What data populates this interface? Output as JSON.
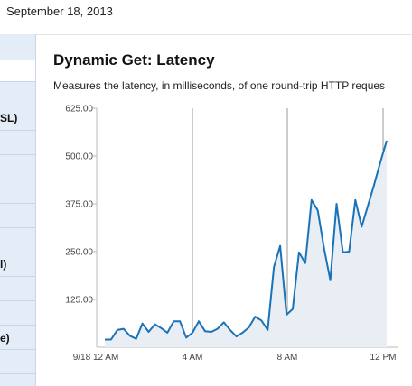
{
  "header": {
    "date": "September 18, 2013"
  },
  "sidebar": {
    "items": [
      {
        "label": "SL)"
      },
      {
        "label": "l)"
      },
      {
        "label": "e)"
      }
    ]
  },
  "panel": {
    "title": "Dynamic Get: Latency",
    "description": "Measures the latency, in milliseconds, of one round-trip HTTP reques"
  },
  "colors": {
    "line": "#1a73b8",
    "area": "#e8eef4",
    "sidebar": "#e4ecf7",
    "vline": "#999999"
  },
  "chart_data": {
    "type": "area",
    "title": "",
    "xlabel": "",
    "ylabel": "",
    "ylim": [
      0,
      625
    ],
    "yticks": [
      "625.00",
      "500.00",
      "375.00",
      "250.00",
      "125.00"
    ],
    "xticks": [
      "9/18 12 AM",
      "4 AM",
      "8 AM",
      "12 PM"
    ],
    "grid": false,
    "series": [
      {
        "values": [
          20,
          20,
          45,
          48,
          30,
          22,
          62,
          40,
          60,
          50,
          38,
          68,
          68,
          25,
          38,
          68,
          42,
          40,
          48,
          65,
          45,
          28,
          38,
          52,
          80,
          70,
          45,
          210,
          265,
          85,
          100,
          248,
          220,
          385,
          358,
          258,
          175,
          375,
          248,
          250,
          385,
          315,
          370,
          425,
          485,
          540
        ]
      }
    ]
  }
}
